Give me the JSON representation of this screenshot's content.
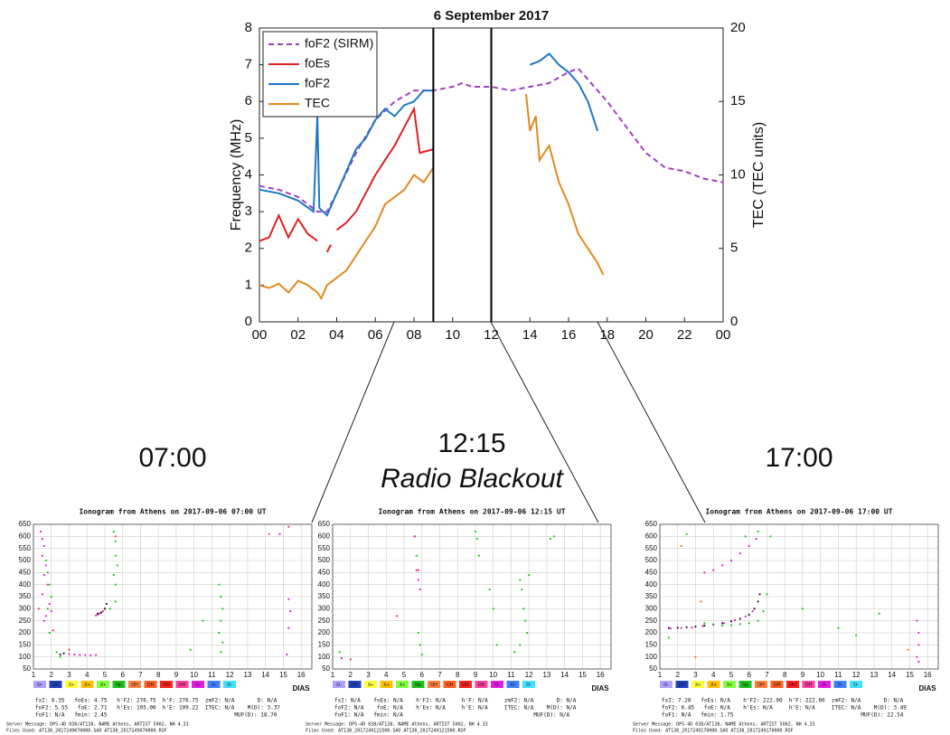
{
  "chart_data": [
    {
      "type": "line",
      "title": "6 September 2017",
      "ylabel": "Frequency (MHz)",
      "y2label": "TEC (TEC units)",
      "xlim": [
        0,
        24
      ],
      "ylim": [
        0,
        8
      ],
      "y2lim": [
        0,
        20
      ],
      "xticks": [
        {
          "value": 0,
          "label": "00"
        },
        {
          "value": 2,
          "label": "02"
        },
        {
          "value": 4,
          "label": "04"
        },
        {
          "value": 6,
          "label": "06"
        },
        {
          "value": 8,
          "label": "08"
        },
        10,
        12,
        14,
        16,
        18,
        20,
        22,
        {
          "value": 24,
          "label": "00"
        }
      ],
      "yticks": [
        0,
        1,
        2,
        3,
        4,
        5,
        6,
        7,
        8
      ],
      "y2ticks": [
        0,
        5,
        10,
        15,
        20
      ],
      "vlines": [
        9,
        12
      ],
      "legend": "upper left",
      "series": [
        {
          "name": "foF2 (SIRM)",
          "color": "#a040c0",
          "dash": true,
          "x": [
            0,
            1,
            2,
            3,
            3.5,
            4,
            5,
            6,
            7,
            8,
            9,
            10,
            10.5,
            11,
            12,
            13,
            14,
            15,
            16,
            16.5,
            17,
            18,
            19,
            20,
            21,
            22,
            23,
            24
          ],
          "values": [
            3.7,
            3.6,
            3.4,
            3.0,
            3.0,
            3.5,
            4.6,
            5.5,
            6.0,
            6.3,
            6.3,
            6.4,
            6.5,
            6.4,
            6.4,
            6.3,
            6.4,
            6.5,
            6.8,
            6.9,
            6.6,
            6.0,
            5.3,
            4.6,
            4.2,
            4.1,
            3.9,
            3.8
          ]
        },
        {
          "name": "foEs",
          "color": "#e02020",
          "x": [
            0,
            0.5,
            1,
            1.5,
            2,
            2.5,
            3,
            3.2,
            3.5,
            3.7,
            3.9,
            4,
            4.5,
            5,
            5.5,
            6,
            6.5,
            7,
            7.5,
            8,
            8.3,
            9
          ],
          "values": [
            2.2,
            2.3,
            2.9,
            2.3,
            2.8,
            2.4,
            2.2,
            null,
            1.9,
            2.1,
            null,
            2.5,
            2.7,
            3.0,
            3.5,
            4.0,
            4.4,
            4.8,
            5.3,
            5.8,
            4.6,
            4.7
          ]
        },
        {
          "name": "foF2",
          "color": "#1f77c4",
          "x": [
            0,
            1,
            2,
            2.8,
            3,
            3.1,
            3.5,
            4,
            5,
            5.5,
            6,
            6.5,
            7,
            7.5,
            8,
            8.5,
            9,
            11,
            14,
            14.5,
            15,
            15.5,
            16,
            16.5,
            17,
            17.5
          ],
          "values": [
            3.6,
            3.5,
            3.3,
            3.0,
            5.6,
            3.1,
            2.9,
            3.5,
            4.7,
            5.0,
            5.5,
            5.8,
            5.6,
            5.9,
            6.0,
            6.3,
            6.3,
            null,
            7.0,
            7.1,
            7.3,
            7.0,
            6.8,
            6.5,
            6.0,
            5.2
          ]
        },
        {
          "name": "TEC",
          "color": "#e08a20",
          "axis": "y2",
          "x": [
            0,
            0.5,
            1,
            1.5,
            2,
            2.5,
            3,
            3.2,
            3.5,
            4,
            4.5,
            5,
            5.5,
            6,
            6.5,
            7,
            7.5,
            8,
            8.5,
            9,
            11,
            13.8,
            14,
            14.3,
            14.5,
            15,
            15.5,
            16,
            16.5,
            17,
            17.5,
            17.8
          ],
          "values": [
            2.5,
            2.3,
            2.6,
            2.0,
            2.8,
            2.5,
            2.0,
            1.6,
            2.5,
            3.0,
            3.5,
            4.5,
            5.5,
            6.5,
            8.0,
            8.5,
            9.0,
            10.0,
            9.5,
            10.5,
            null,
            15.5,
            13.0,
            14.0,
            11.0,
            12.0,
            9.5,
            8.0,
            6.0,
            5.0,
            4.0,
            3.2
          ]
        }
      ]
    },
    {
      "type": "scatter",
      "caption": "07:00",
      "title": "Ionogram from Athens on 2017-09-06 07:00 UT",
      "xlim": [
        1,
        16.6
      ],
      "ylim": [
        50,
        650
      ],
      "xticks": [
        1,
        2,
        3,
        4,
        5,
        6,
        7,
        8,
        9,
        10,
        11,
        12,
        13,
        14,
        15,
        16
      ],
      "yticks": [
        50,
        100,
        150,
        200,
        250,
        300,
        350,
        400,
        450,
        500,
        550,
        600,
        650
      ],
      "grid": true,
      "series": [
        {
          "color": "#e020c0",
          "x": [
            1.4,
            1.5,
            1.6,
            1.5,
            1.7,
            1.6,
            1.8,
            1.5,
            1.9,
            2.0,
            1.7,
            1.6,
            4.5,
            4.6,
            4.7,
            4.8,
            4.9,
            5.0,
            3.0,
            3.3,
            3.6,
            3.9,
            4.2,
            4.5,
            15.3,
            15.4,
            15.3,
            15.2,
            14.8
          ],
          "values": [
            620,
            590,
            560,
            520,
            480,
            440,
            400,
            360,
            320,
            290,
            270,
            250,
            272,
            276,
            280,
            284,
            290,
            300,
            112,
            110,
            108,
            108,
            107,
            108,
            340,
            290,
            220,
            110,
            610
          ]
        },
        {
          "color": "#20c020",
          "x": [
            1.7,
            1.8,
            1.9,
            2.0,
            1.8,
            1.9,
            5.5,
            5.6,
            5.6,
            5.7,
            5.5,
            5.6,
            11.4,
            11.5,
            11.6,
            11.5,
            11.4,
            11.6,
            11.5,
            10.5,
            9.8,
            5.3,
            5.6,
            2.3,
            2.5
          ],
          "values": [
            500,
            450,
            400,
            350,
            300,
            200,
            620,
            580,
            520,
            480,
            440,
            400,
            400,
            350,
            300,
            250,
            200,
            160,
            120,
            250,
            130,
            300,
            330,
            120,
            100
          ]
        },
        {
          "color": "#202020",
          "x": [
            2.5,
            2.7,
            4.6,
            4.8,
            5.0,
            5.1
          ],
          "values": [
            110,
            115,
            280,
            285,
            300,
            320
          ]
        },
        {
          "color": "#ff3030",
          "x": [
            1.3,
            2.1,
            3.0,
            5.6,
            14.2,
            15.3
          ],
          "values": [
            300,
            210,
            130,
            600,
            610,
            640
          ]
        }
      ],
      "legend": [
        {
          "label": "O-",
          "color": "#b0a0ff"
        },
        {
          "label": "O0",
          "color": "#2040c0"
        },
        {
          "label": "X+",
          "color": "#ffff40"
        },
        {
          "label": "X+",
          "color": "#ffc000"
        },
        {
          "label": "X+",
          "color": "#80ff40"
        },
        {
          "label": "No",
          "color": "#20c020"
        },
        {
          "label": "OH",
          "color": "#ff8040"
        },
        {
          "label": "OH",
          "color": "#ff6020"
        },
        {
          "label": "OH",
          "color": "#ff2020"
        },
        {
          "label": "OH",
          "color": "#ff40a0"
        },
        {
          "label": "O-",
          "color": "#e020e0"
        },
        {
          "label": "O-",
          "color": "#4080ff"
        },
        {
          "label": "O-",
          "color": "#40e0ff"
        }
      ],
      "logo": "DIAS",
      "info": [
        "fxI: 6.35   foEs: 4.75   h'F2: 276.75  h'F: 276.75  zmF2: N/A       D: N/A",
        "foF2: 5.55   foE: 2.71   h'Es: 105.00  h'E: 109.22  ITEC: N/A    M(D): 3.37",
        "foF1: N/A   fmin: 2.45                                       MUF(D): 18.70",
        "Server Message: DPS-4D 038/AT138, NAME Athens, ARTIST 5002, NH 4.33",
        "Files Used: AT138_2017249070000.SAO AT138_2017249070000.RSF"
      ]
    },
    {
      "type": "scatter",
      "caption": "12:15",
      "subcaption": "Radio Blackout",
      "title": "Ionogram from Athens on 2017-09-06 12:15 UT",
      "xlim": [
        1,
        16.6
      ],
      "ylim": [
        50,
        650
      ],
      "xticks": [
        1,
        2,
        3,
        4,
        5,
        6,
        7,
        8,
        9,
        10,
        11,
        12,
        13,
        14,
        15,
        16
      ],
      "yticks": [
        50,
        100,
        150,
        200,
        250,
        300,
        350,
        400,
        450,
        500,
        550,
        600,
        650
      ],
      "grid": true,
      "series": [
        {
          "color": "#20c020",
          "x": [
            5.6,
            5.7,
            5.8,
            5.9,
            9.0,
            9.1,
            9.2,
            9.8,
            10.0,
            10.2,
            11.5,
            11.6,
            11.7,
            11.8,
            11.9,
            11.5,
            11.2,
            13.2,
            13.4,
            1.4,
            6.0,
            12.0
          ],
          "values": [
            600,
            520,
            200,
            150,
            620,
            590,
            520,
            380,
            300,
            150,
            420,
            380,
            300,
            250,
            200,
            150,
            120,
            590,
            600,
            120,
            110,
            440
          ]
        },
        {
          "color": "#e020c0",
          "x": [
            5.7,
            5.8,
            4.6,
            5.6,
            5.9,
            1.5
          ],
          "values": [
            460,
            420,
            270,
            600,
            380,
            95
          ]
        },
        {
          "color": "#ff3030",
          "x": [
            5.8,
            2.0
          ],
          "values": [
            460,
            90
          ]
        }
      ],
      "legend": [
        {
          "label": "O-",
          "color": "#b0a0ff"
        },
        {
          "label": "O0",
          "color": "#2040c0"
        },
        {
          "label": "X+",
          "color": "#ffff40"
        },
        {
          "label": "X+",
          "color": "#ffc000"
        },
        {
          "label": "X+",
          "color": "#80ff40"
        },
        {
          "label": "No",
          "color": "#20c020"
        },
        {
          "label": "OH",
          "color": "#ff8040"
        },
        {
          "label": "OH",
          "color": "#ff6020"
        },
        {
          "label": "OH",
          "color": "#ff2020"
        },
        {
          "label": "OH",
          "color": "#ff40a0"
        },
        {
          "label": "O-",
          "color": "#e020e0"
        },
        {
          "label": "O-",
          "color": "#4080ff"
        },
        {
          "label": "O-",
          "color": "#40e0ff"
        }
      ],
      "logo": "DIAS",
      "info": [
        "fxI: N/A    foEs: N/A    h'F2: N/A     h'F: N/A     zmF2: N/A       D: N/A",
        "foF2: N/A    foE: N/A    h'Es: N/A     h'E: N/A     ITEC: N/A    M(D): N/A",
        "foF1: N/A   fmin: N/A                                        MUF(D): N/A",
        "Server Message: DPS-4D 038/AT138, NAME Athens, ARTIST 5002, NH 4.33",
        "Files Used: AT138_2017249121500.SAO AT138_2017249121500.RSF"
      ]
    },
    {
      "type": "scatter",
      "caption": "17:00",
      "title": "Ionogram from Athens on 2017-09-06 17:00 UT",
      "xlim": [
        1,
        16.6
      ],
      "ylim": [
        50,
        650
      ],
      "xticks": [
        1,
        2,
        3,
        4,
        5,
        6,
        7,
        8,
        9,
        10,
        11,
        12,
        13,
        14,
        15,
        16
      ],
      "yticks": [
        50,
        100,
        150,
        200,
        250,
        300,
        350,
        400,
        450,
        500,
        550,
        600,
        650
      ],
      "grid": true,
      "series": [
        {
          "color": "#202020",
          "x": [
            1.5,
            2,
            2.5,
            3,
            3.5,
            4,
            4.5,
            5,
            5.5,
            6,
            6.3,
            6.5,
            6.6
          ],
          "values": [
            220,
            221,
            223,
            226,
            230,
            235,
            240,
            248,
            258,
            275,
            300,
            330,
            360
          ]
        },
        {
          "color": "#e020c0",
          "x": [
            1.6,
            2.2,
            2.8,
            3.4,
            4.0,
            4.6,
            5.2,
            5.8,
            6.2,
            3.5,
            4,
            4.5,
            5,
            5.5,
            6,
            6.4,
            15.4,
            15.5,
            15.5,
            15.4,
            15.5
          ],
          "values": [
            218,
            220,
            222,
            228,
            233,
            240,
            252,
            268,
            290,
            450,
            460,
            480,
            500,
            530,
            560,
            590,
            250,
            200,
            150,
            100,
            80
          ]
        },
        {
          "color": "#20c020",
          "x": [
            3.5,
            4,
            4.5,
            5,
            5.5,
            6,
            6.5,
            6.8,
            7,
            2.5,
            9,
            11,
            12,
            13.3,
            1.5,
            7.2,
            5.8,
            6.5
          ],
          "values": [
            240,
            235,
            230,
            232,
            236,
            240,
            250,
            290,
            360,
            610,
            300,
            220,
            190,
            280,
            180,
            600,
            600,
            620
          ]
        },
        {
          "color": "#ff6020",
          "x": [
            3.3,
            3.0,
            14.9,
            2.2
          ],
          "values": [
            330,
            100,
            130,
            560
          ]
        }
      ],
      "legend": [
        {
          "label": "O-",
          "color": "#b0a0ff"
        },
        {
          "label": "O0",
          "color": "#2040c0"
        },
        {
          "label": "X+",
          "color": "#ffff40"
        },
        {
          "label": "X+",
          "color": "#ffc000"
        },
        {
          "label": "X+",
          "color": "#80ff40"
        },
        {
          "label": "No",
          "color": "#20c020"
        },
        {
          "label": "OH",
          "color": "#ff8040"
        },
        {
          "label": "OH",
          "color": "#ff6020"
        },
        {
          "label": "OH",
          "color": "#ff2020"
        },
        {
          "label": "OH",
          "color": "#ff40a0"
        },
        {
          "label": "O-",
          "color": "#e020e0"
        },
        {
          "label": "O-",
          "color": "#4080ff"
        },
        {
          "label": "O-",
          "color": "#40e0ff"
        }
      ],
      "logo": "DIAS",
      "info": [
        "fxI: 7.20   foEs: N/A    h'F2: 222.00  h'F: 222.00  zmF2: N/A       D: N/A",
        "foF2: 6.45   foE: N/A    h'Es: N/A     h'E: N/A     ITEC: N/A    M(D): 3.49",
        "foF1: N/A   fmin: 1.75                                       MUF(D): 22.54",
        "Server Message: DPS-4D 038/AT138, NAME Athens, ARTIST 5002, NH 4.33",
        "Files Used: AT138_2017249170000.SAO AT138_2017249170000.RSF"
      ]
    }
  ]
}
